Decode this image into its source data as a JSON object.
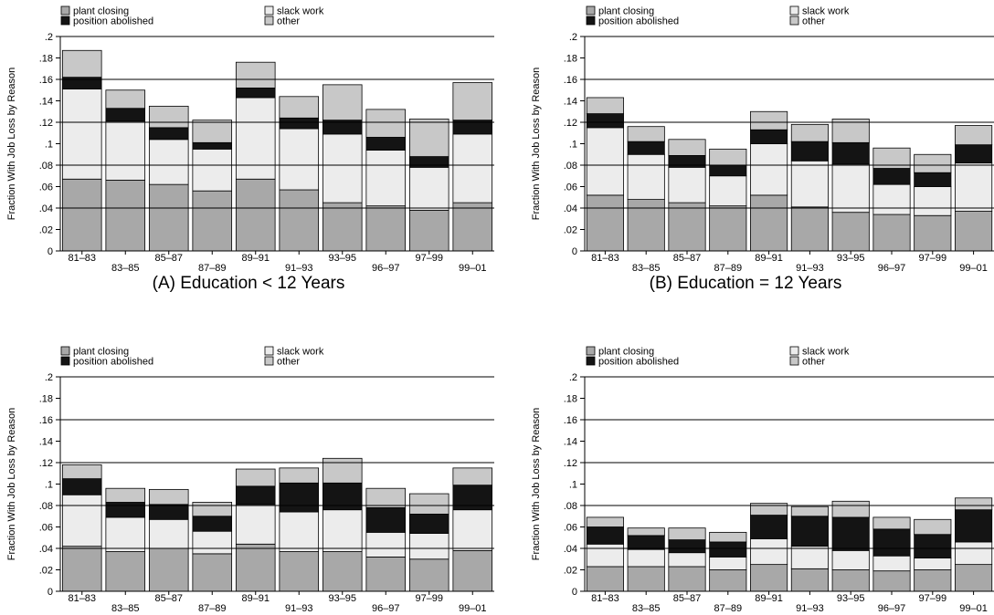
{
  "legend": [
    {
      "key": "plant",
      "label": "plant closing",
      "color": "#a8a8a8"
    },
    {
      "key": "slack",
      "label": "slack work",
      "color": "#ececec"
    },
    {
      "key": "position",
      "label": "position abolished",
      "color": "#141414"
    },
    {
      "key": "other",
      "label": "other",
      "color": "#c8c8c8"
    }
  ],
  "chart_data": [
    {
      "type": "bar",
      "stacked": true,
      "caption": "(A) Education < 12 Years",
      "ylabel": "Fraction With Job Loss by Reason",
      "ylim": [
        0,
        0.2
      ],
      "yticks": [
        0,
        0.02,
        0.04,
        0.06,
        0.08,
        0.1,
        0.12,
        0.14,
        0.16,
        0.18,
        0.2
      ],
      "ytick_labels": [
        "0",
        ".02",
        ".04",
        ".06",
        ".08",
        ".1",
        ".12",
        ".14",
        ".16",
        ".18",
        ".2"
      ],
      "gridlines": [
        0.04,
        0.08,
        0.12,
        0.16
      ],
      "categories": [
        "81–83",
        "83–85",
        "85–87",
        "87–89",
        "89–91",
        "91–93",
        "93–95",
        "96–97",
        "97–99",
        "99–01"
      ],
      "series": [
        {
          "name": "plant closing",
          "values": [
            0.067,
            0.066,
            0.062,
            0.056,
            0.067,
            0.057,
            0.045,
            0.042,
            0.038,
            0.045
          ]
        },
        {
          "name": "slack work",
          "values": [
            0.084,
            0.055,
            0.042,
            0.039,
            0.076,
            0.057,
            0.064,
            0.052,
            0.04,
            0.064
          ]
        },
        {
          "name": "position abolished",
          "values": [
            0.011,
            0.012,
            0.011,
            0.006,
            0.009,
            0.01,
            0.013,
            0.012,
            0.01,
            0.013
          ]
        },
        {
          "name": "other",
          "values": [
            0.025,
            0.017,
            0.02,
            0.021,
            0.024,
            0.02,
            0.033,
            0.026,
            0.035,
            0.035
          ]
        }
      ]
    },
    {
      "type": "bar",
      "stacked": true,
      "caption": "(B) Education = 12 Years",
      "ylabel": "Fraction With Job Loss by Reason",
      "ylim": [
        0,
        0.2
      ],
      "yticks": [
        0,
        0.02,
        0.04,
        0.06,
        0.08,
        0.1,
        0.12,
        0.14,
        0.16,
        0.18,
        0.2
      ],
      "ytick_labels": [
        "0",
        ".02",
        ".04",
        ".06",
        ".08",
        ".1",
        ".12",
        ".14",
        ".16",
        ".18",
        ".2"
      ],
      "gridlines": [
        0.04,
        0.08,
        0.12,
        0.16
      ],
      "categories": [
        "81–83",
        "83–85",
        "85–87",
        "87–89",
        "89–91",
        "91–93",
        "93–95",
        "96–97",
        "97–99",
        "99–01"
      ],
      "series": [
        {
          "name": "plant closing",
          "values": [
            0.052,
            0.048,
            0.045,
            0.042,
            0.052,
            0.041,
            0.036,
            0.034,
            0.033,
            0.037
          ]
        },
        {
          "name": "slack work",
          "values": [
            0.063,
            0.042,
            0.033,
            0.028,
            0.048,
            0.043,
            0.045,
            0.028,
            0.027,
            0.045
          ]
        },
        {
          "name": "position abolished",
          "values": [
            0.013,
            0.012,
            0.011,
            0.01,
            0.013,
            0.018,
            0.02,
            0.015,
            0.013,
            0.017
          ]
        },
        {
          "name": "other",
          "values": [
            0.015,
            0.014,
            0.015,
            0.015,
            0.017,
            0.016,
            0.022,
            0.019,
            0.017,
            0.018
          ]
        }
      ]
    },
    {
      "type": "bar",
      "stacked": true,
      "caption": "",
      "ylabel": "Fraction With Job Loss by Reason",
      "ylim": [
        0,
        0.2
      ],
      "yticks": [
        0,
        0.02,
        0.04,
        0.06,
        0.08,
        0.1,
        0.12,
        0.14,
        0.16,
        0.18,
        0.2
      ],
      "ytick_labels": [
        "0",
        ".02",
        ".04",
        ".06",
        ".08",
        ".1",
        ".12",
        ".14",
        ".16",
        ".18",
        ".2"
      ],
      "gridlines": [
        0.04,
        0.08,
        0.12,
        0.16
      ],
      "categories": [
        "81–83",
        "83–85",
        "85–87",
        "87–89",
        "89–91",
        "91–93",
        "93–95",
        "96–97",
        "97–99",
        "99–01"
      ],
      "series": [
        {
          "name": "plant closing",
          "values": [
            0.042,
            0.037,
            0.04,
            0.035,
            0.044,
            0.037,
            0.037,
            0.032,
            0.03,
            0.038
          ]
        },
        {
          "name": "slack work",
          "values": [
            0.048,
            0.032,
            0.027,
            0.021,
            0.037,
            0.037,
            0.039,
            0.023,
            0.024,
            0.038
          ]
        },
        {
          "name": "position abolished",
          "values": [
            0.015,
            0.014,
            0.014,
            0.014,
            0.017,
            0.027,
            0.025,
            0.023,
            0.018,
            0.023
          ]
        },
        {
          "name": "other",
          "values": [
            0.013,
            0.013,
            0.014,
            0.013,
            0.016,
            0.014,
            0.023,
            0.018,
            0.019,
            0.016
          ]
        }
      ]
    },
    {
      "type": "bar",
      "stacked": true,
      "caption": "",
      "ylabel": "Fraction With Job Loss by Reason",
      "ylim": [
        0,
        0.2
      ],
      "yticks": [
        0,
        0.02,
        0.04,
        0.06,
        0.08,
        0.1,
        0.12,
        0.14,
        0.16,
        0.18,
        0.2
      ],
      "ytick_labels": [
        "0",
        ".02",
        ".04",
        ".06",
        ".08",
        ".1",
        ".12",
        ".14",
        ".16",
        ".18",
        ".2"
      ],
      "gridlines": [
        0.04,
        0.08,
        0.12,
        0.16
      ],
      "categories": [
        "81–83",
        "83–85",
        "85–87",
        "87–89",
        "89–91",
        "91–93",
        "93–95",
        "96–97",
        "97–99",
        "99–01"
      ],
      "series": [
        {
          "name": "plant closing",
          "values": [
            0.023,
            0.023,
            0.023,
            0.02,
            0.025,
            0.021,
            0.02,
            0.019,
            0.02,
            0.025
          ]
        },
        {
          "name": "slack work",
          "values": [
            0.021,
            0.016,
            0.013,
            0.012,
            0.024,
            0.021,
            0.018,
            0.014,
            0.011,
            0.021
          ]
        },
        {
          "name": "position abolished",
          "values": [
            0.016,
            0.013,
            0.012,
            0.014,
            0.022,
            0.028,
            0.031,
            0.025,
            0.022,
            0.03
          ]
        },
        {
          "name": "other",
          "values": [
            0.009,
            0.007,
            0.011,
            0.009,
            0.011,
            0.009,
            0.015,
            0.011,
            0.014,
            0.011
          ]
        }
      ]
    }
  ]
}
